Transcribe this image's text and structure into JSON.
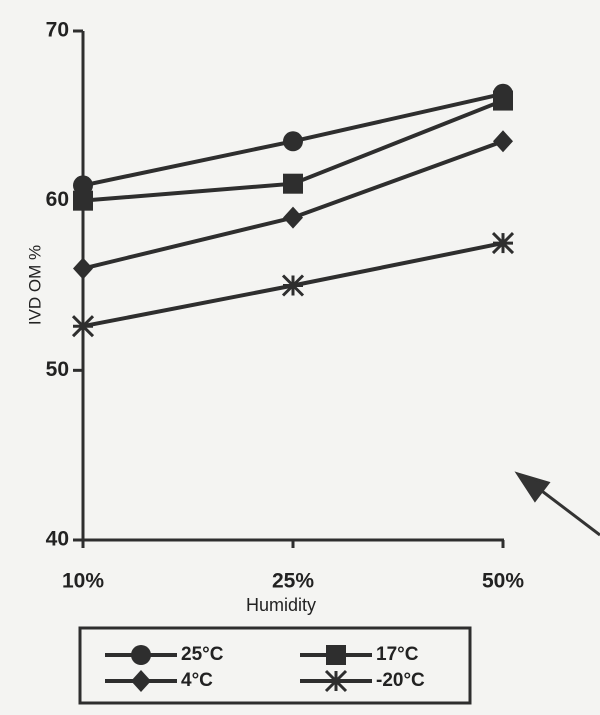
{
  "chart_data": {
    "type": "line",
    "x_label": "Humidity",
    "y_label": "IVD OM %",
    "categories": [
      "10%",
      "25%",
      "50%"
    ],
    "series": [
      {
        "name": "25°C",
        "color": "#2e2e2e",
        "marker": "circle",
        "values": [
          60.9,
          63.5,
          66.3
        ]
      },
      {
        "name": "17°C",
        "color": "#2e2e2e",
        "marker": "square",
        "values": [
          60.0,
          61.0,
          65.9
        ]
      },
      {
        "name": "4°C",
        "color": "#2e2e2e",
        "marker": "diamond",
        "values": [
          56.0,
          59.0,
          63.5
        ]
      },
      {
        "name": "-20°C",
        "color": "#2e2e2e",
        "marker": "asterisk",
        "values": [
          52.6,
          55.0,
          57.5
        ]
      }
    ],
    "ylim": [
      40,
      70
    ],
    "yticks": [
      40,
      50,
      60,
      70
    ],
    "grid": false
  }
}
